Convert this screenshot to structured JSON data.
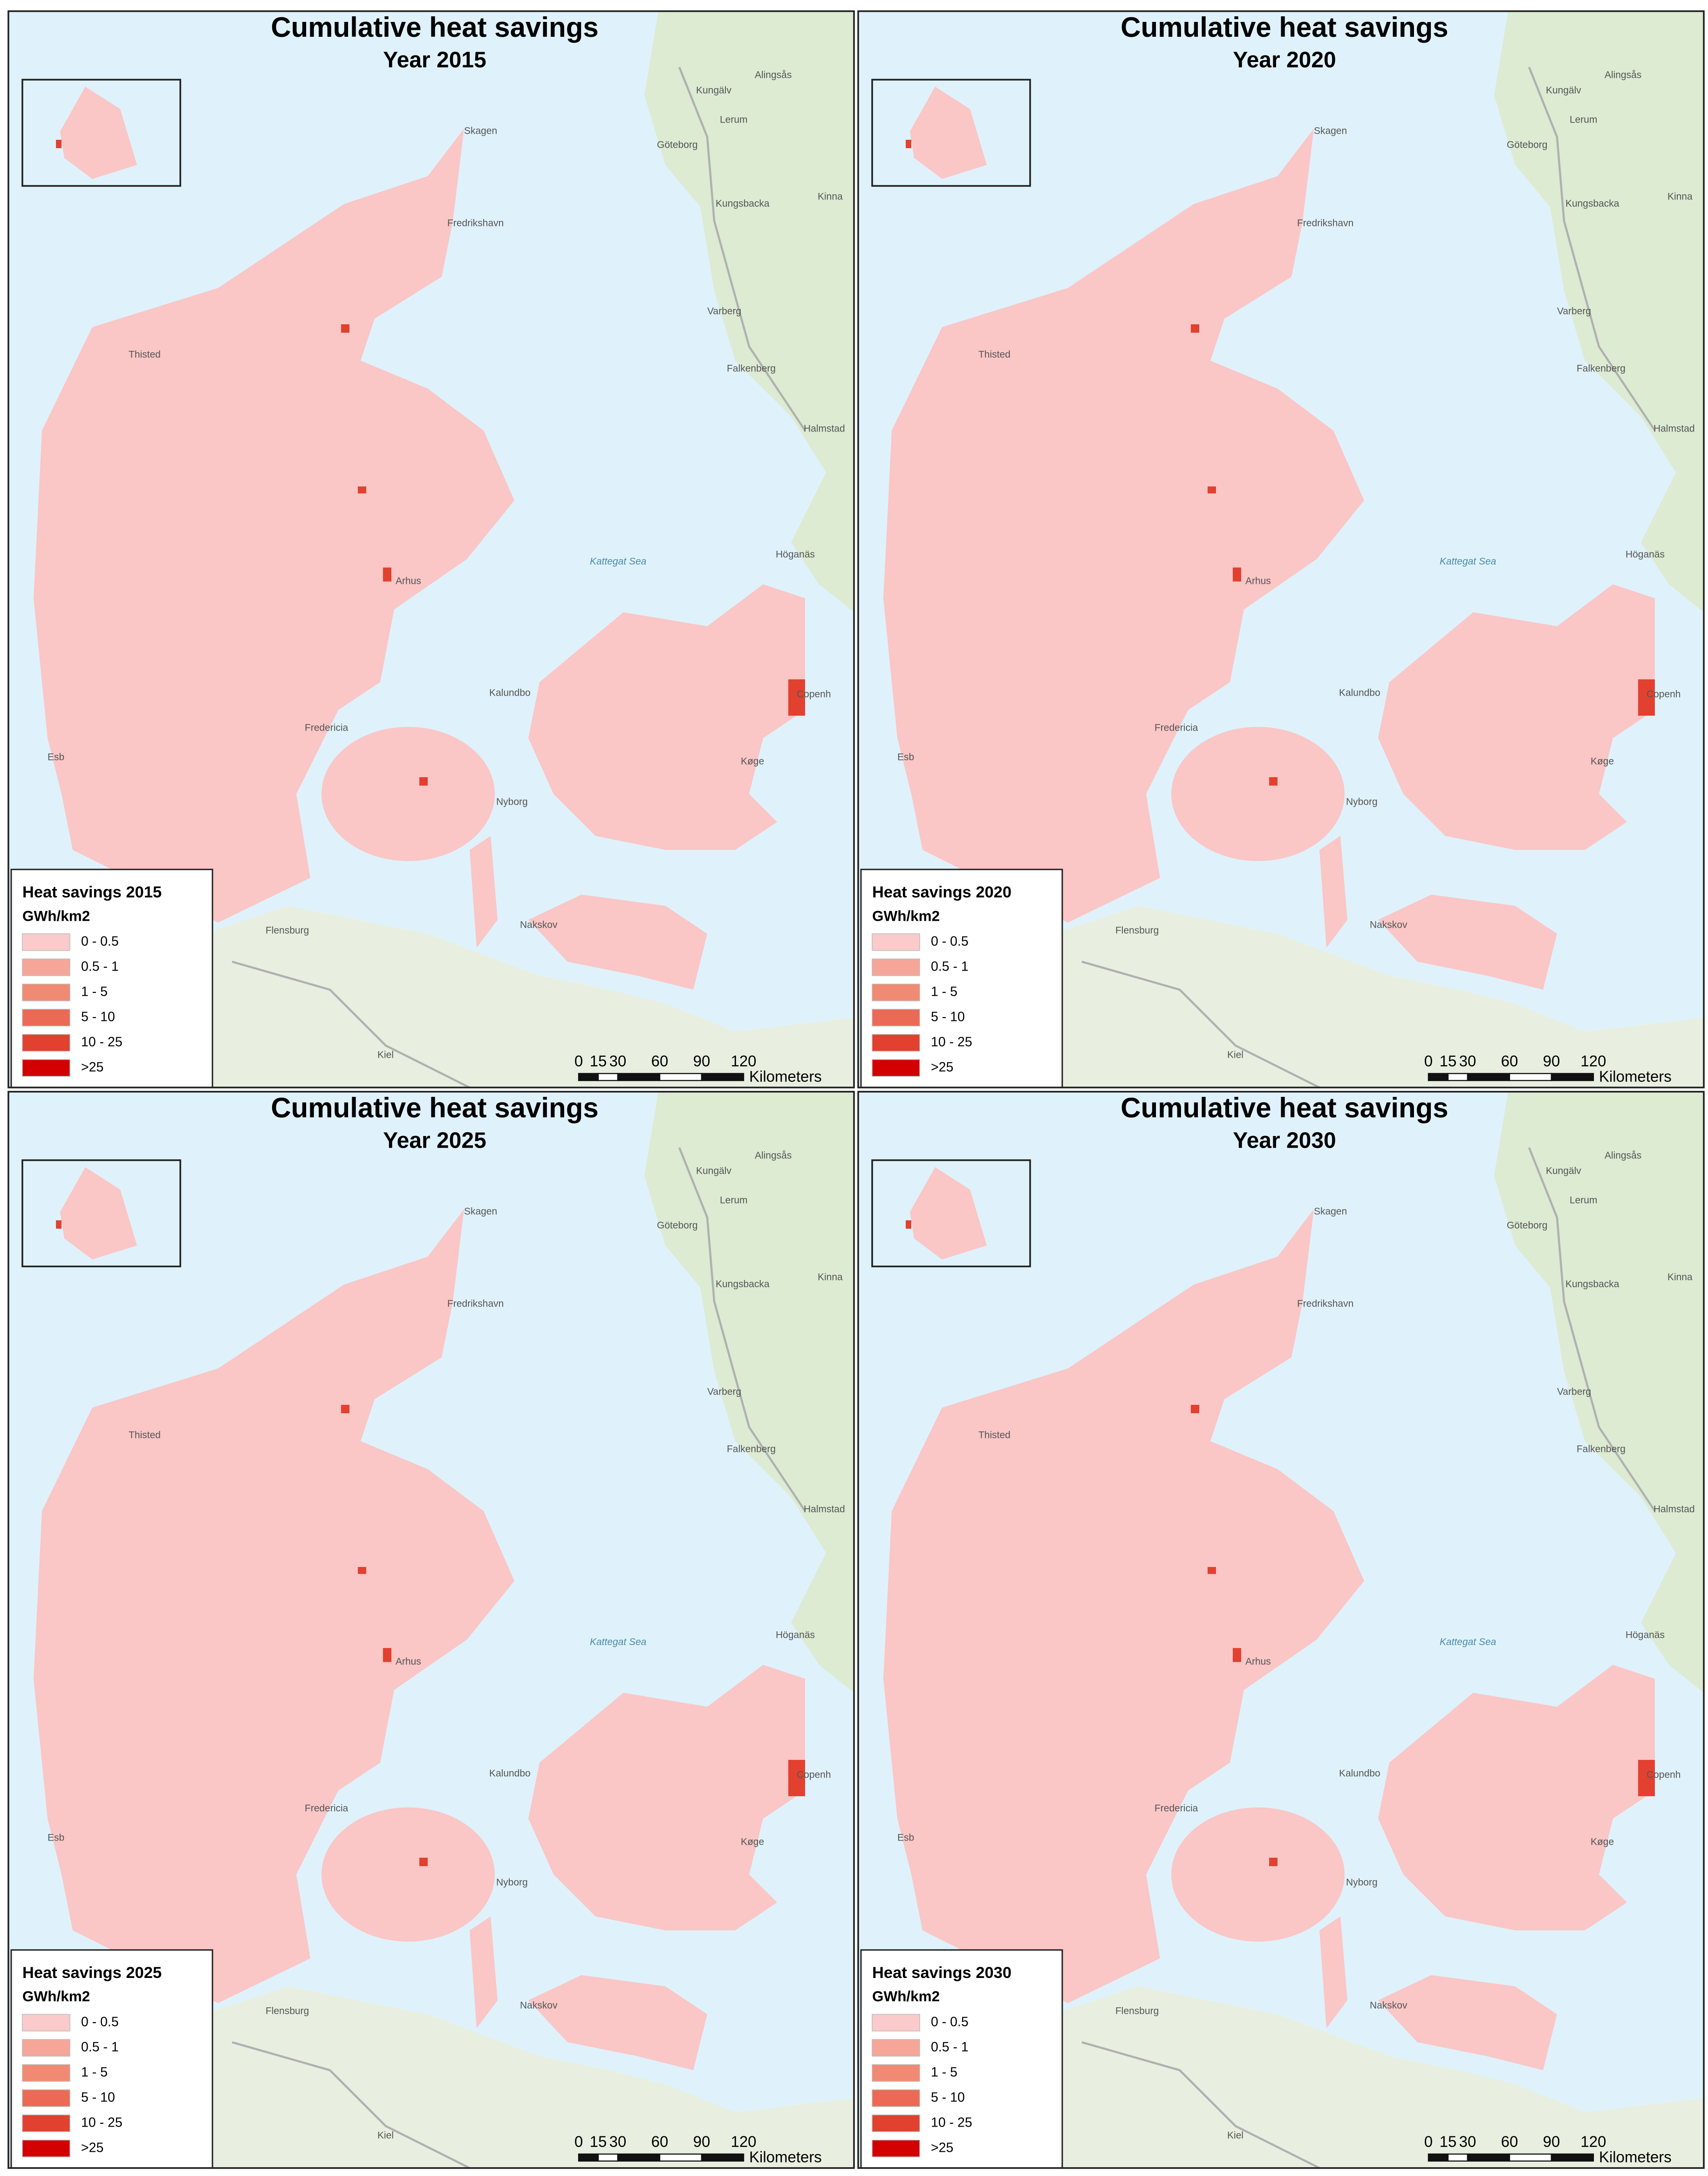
{
  "panels": [
    {
      "title": "Cumulative heat savings",
      "subtitle": "Year 2015",
      "legend_title": "Heat savings 2015"
    },
    {
      "title": "Cumulative heat savings",
      "subtitle": "Year 2020",
      "legend_title": "Heat savings 2020"
    },
    {
      "title": "Cumulative heat savings",
      "subtitle": "Year 2025",
      "legend_title": "Heat savings 2025"
    },
    {
      "title": "Cumulative heat savings",
      "subtitle": "Year 2030",
      "legend_title": "Heat savings 2030"
    }
  ],
  "legend": {
    "unit": "GWh/km2",
    "classes": [
      "0 - 0.5",
      "0.5 - 1",
      "1 - 5",
      "5 - 10",
      "10 - 25",
      ">25"
    ],
    "colors": [
      "#fbcaca",
      "#f5a698",
      "#f08a72",
      "#ec6a55",
      "#e2412f",
      "#d20000"
    ]
  },
  "scale_bar": {
    "labels": [
      "0",
      "15",
      "30",
      "60",
      "90",
      "120"
    ],
    "unit": "Kilometers"
  },
  "map_labels": [
    "Göteborg",
    "Fredrikshavn",
    "Skagen",
    "Arhus",
    "Kalundbo",
    "Kattegat Sea",
    "Copenh",
    "Køge",
    "Flensburg",
    "Kiel",
    "Nakskov",
    "Nyborg",
    "Fredericia",
    "Esb",
    "Thisted",
    "Varberg",
    "Falkenberg",
    "Halmstad",
    "Höganäs",
    "Kungsbacka",
    "Kinna",
    "Kungälv",
    "Lerum",
    "Alingsås"
  ]
}
